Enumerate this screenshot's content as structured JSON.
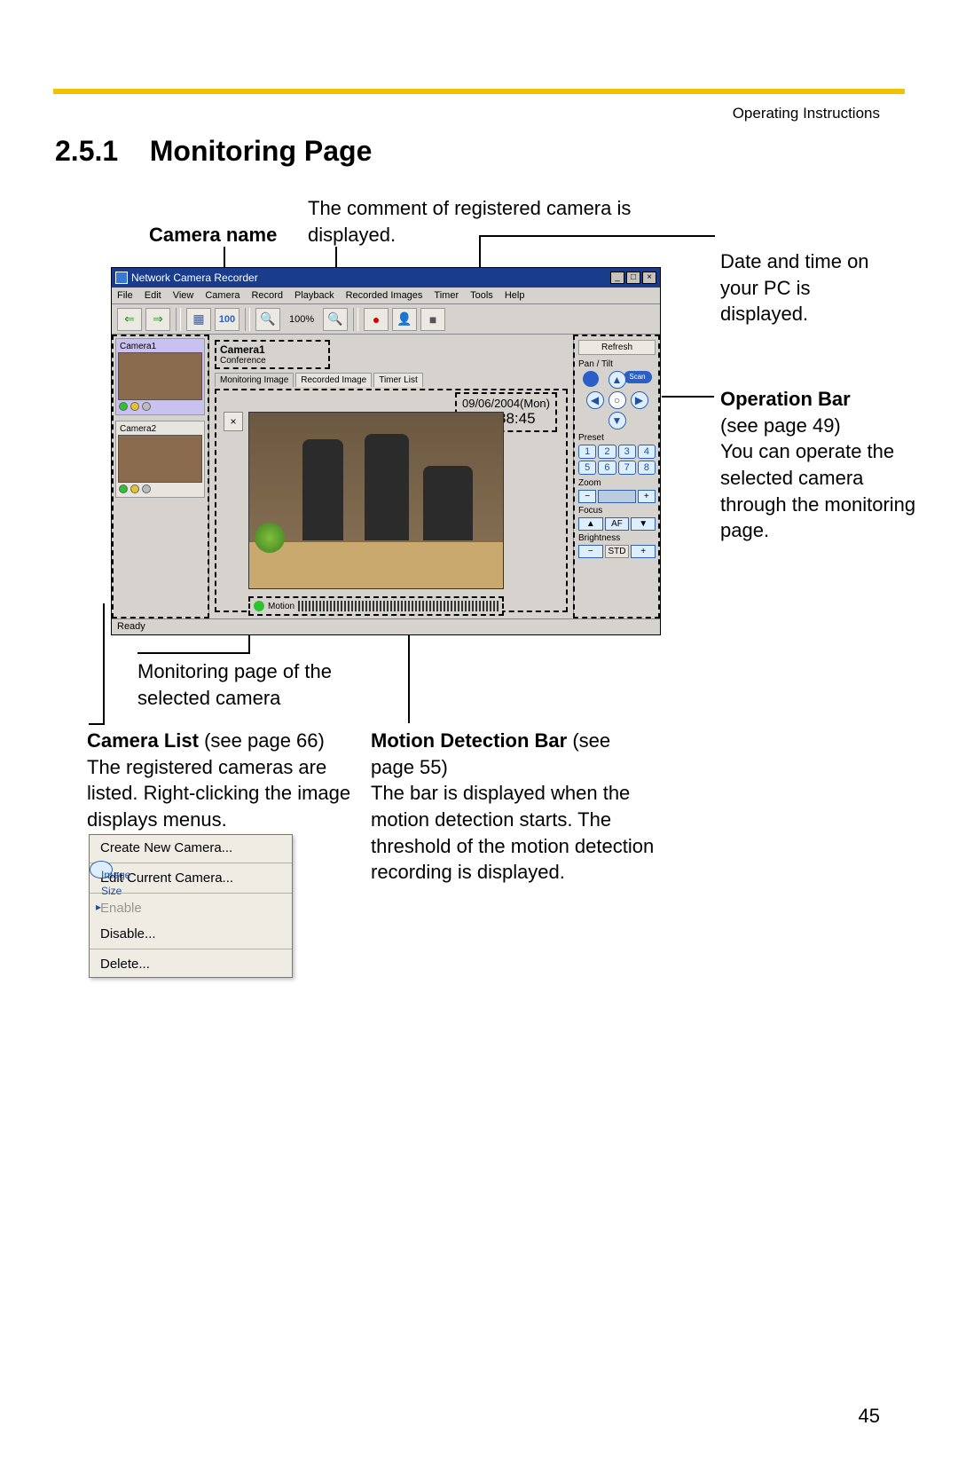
{
  "page": {
    "header_right": "Operating Instructions",
    "section_number": "2.5.1",
    "section_title": "Monitoring Page",
    "page_number": "45",
    "topbar_color": "#f2c200"
  },
  "callouts": {
    "camera_name": {
      "label": "Camera name"
    },
    "comment": {
      "text": "The comment of registered camera is displayed."
    },
    "datetime": {
      "text": "Date and time on your PC is displayed."
    },
    "operation_bar": {
      "title": "Operation Bar",
      "ref": "(see page 49)",
      "text": "You can operate the selected camera through the monitoring page."
    },
    "monitor_caption": {
      "text": "Monitoring page of the selected camera"
    },
    "camera_list": {
      "title": "Camera List",
      "ref": "(see page 66)",
      "text": "The registered cameras are listed. Right-clicking the image displays menus."
    },
    "motion_bar": {
      "title": "Motion Detection Bar",
      "ref": "(see page 55)",
      "text": "The bar is displayed when the motion detection starts. The threshold of the motion detection recording is displayed."
    }
  },
  "app": {
    "title": "Network Camera Recorder",
    "menus": [
      "File",
      "Edit",
      "View",
      "Camera",
      "Record",
      "Playback",
      "Recorded Images",
      "Timer",
      "Tools",
      "Help"
    ],
    "toolbar": {
      "back_icon": "⇐",
      "fwd_icon": "⇒",
      "grid_icon": "▦",
      "hundred": "100",
      "zoom_out": "🔍",
      "zoom_pct": "100%",
      "zoom_in": "🔍",
      "record": "●",
      "capture": "👤",
      "stop": "■"
    },
    "status": "Ready",
    "camera_list": [
      {
        "label": "Camera1",
        "selected": true
      },
      {
        "label": "Camera2",
        "selected": false
      }
    ],
    "center": {
      "camera_name": "Camera1",
      "camera_comment": "Conference",
      "tabs": [
        "Monitoring Image",
        "Recorded Image",
        "Timer List"
      ],
      "date": "09/06/2004(Mon)",
      "time": "19:38:45",
      "motion_label": "Motion"
    },
    "opbar": {
      "refresh": "Refresh",
      "pan_label": "Pan / Tilt",
      "scan": "Scan",
      "preset_label": "Preset",
      "presets": [
        "1",
        "2",
        "3",
        "4",
        "5",
        "6",
        "7",
        "8"
      ],
      "zoom_label": "Zoom",
      "zoom_btns": [
        "−",
        "",
        "+"
      ],
      "focus_label": "Focus",
      "focus_btns": [
        "▲",
        "AF",
        "▼"
      ],
      "bright_label": "Brightness",
      "bright_btns": [
        "−",
        "STD",
        "+"
      ]
    }
  },
  "context_menu": {
    "items": [
      {
        "label": "Create New Camera...",
        "type": "item"
      },
      {
        "label": "Image Size",
        "type": "submenu"
      },
      {
        "type": "sep"
      },
      {
        "label": "Edit Current Camera...",
        "type": "item"
      },
      {
        "type": "sep"
      },
      {
        "label": "Enable",
        "type": "item",
        "disabled": true
      },
      {
        "label": "Disable...",
        "type": "item"
      },
      {
        "type": "sep"
      },
      {
        "label": "Delete...",
        "type": "item"
      }
    ]
  }
}
